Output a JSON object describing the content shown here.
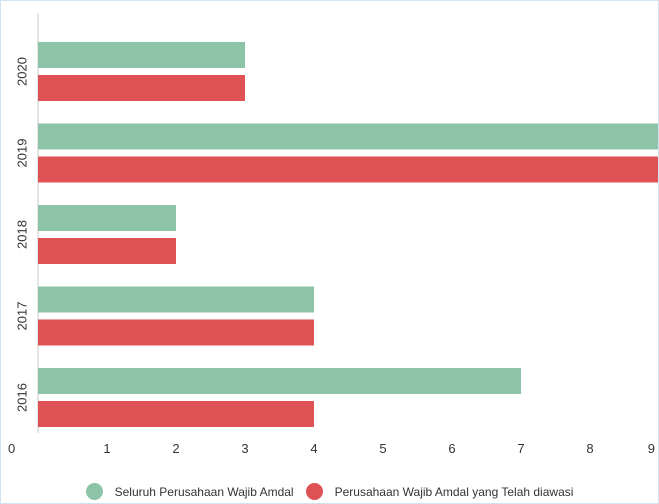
{
  "chart_data": {
    "type": "bar",
    "orientation": "horizontal",
    "categories": [
      "2020",
      "2019",
      "2018",
      "2017",
      "2016"
    ],
    "series": [
      {
        "name": "Seluruh Perusahaan Wajib Amdal",
        "color": "#8dc3a6",
        "values": [
          3,
          9,
          2,
          4,
          7
        ]
      },
      {
        "name": "Perusahaan Wajib Amdal yang Telah diawasi",
        "color": "#de5256",
        "values": [
          3,
          9,
          2,
          4,
          4
        ]
      }
    ],
    "x_ticks": [
      "0",
      "1",
      "2",
      "3",
      "4",
      "5",
      "6",
      "7",
      "8",
      "9"
    ],
    "xlim": [
      0,
      9
    ],
    "title": "",
    "xlabel": "",
    "ylabel": "",
    "grid": false,
    "legend_position": "bottom-center"
  }
}
